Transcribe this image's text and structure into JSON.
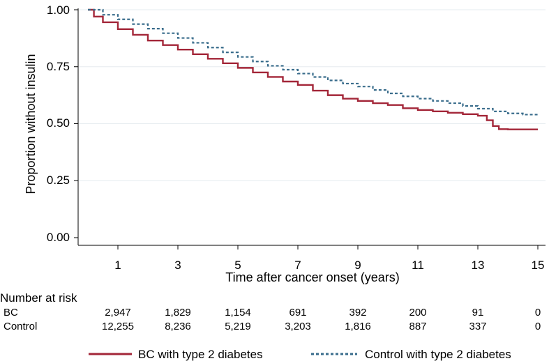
{
  "chart_data": {
    "type": "line",
    "title": "",
    "xlabel": "Time after cancer onset (years)",
    "ylabel": "Proportion without insulin",
    "xlim": [
      0,
      15
    ],
    "ylim": [
      0,
      1
    ],
    "x_ticks": [
      "1",
      "3",
      "5",
      "7",
      "9",
      "11",
      "13",
      "15"
    ],
    "y_ticks": [
      "0.00",
      "0.25",
      "0.50",
      "0.75",
      "1.00"
    ],
    "grid": true,
    "series": [
      {
        "name": "BC with type 2 diabetes",
        "color": "#a32638",
        "style": "solid",
        "x": [
          0,
          0.2,
          0.5,
          1,
          1.5,
          2,
          2.5,
          3,
          3.5,
          4,
          4.5,
          5,
          5.5,
          6,
          6.5,
          7,
          7.5,
          8,
          8.5,
          9,
          9.5,
          10,
          10.5,
          11,
          11.5,
          12,
          12.5,
          13,
          13.3,
          13.5,
          13.7,
          14,
          14.5,
          15
        ],
        "values": [
          1.0,
          0.97,
          0.945,
          0.915,
          0.89,
          0.865,
          0.845,
          0.825,
          0.805,
          0.785,
          0.765,
          0.745,
          0.725,
          0.705,
          0.685,
          0.67,
          0.645,
          0.625,
          0.61,
          0.6,
          0.59,
          0.582,
          0.568,
          0.56,
          0.554,
          0.548,
          0.542,
          0.535,
          0.515,
          0.49,
          0.476,
          0.475,
          0.475,
          0.475
        ]
      },
      {
        "name": "Control with type 2 diabetes",
        "color": "#3a6d8c",
        "style": "dashed",
        "x": [
          0,
          0.5,
          1,
          1.5,
          2,
          2.5,
          3,
          3.5,
          4,
          4.5,
          5,
          5.5,
          6,
          6.5,
          7,
          7.5,
          8,
          8.5,
          9,
          9.5,
          10,
          10.5,
          11,
          11.5,
          12,
          12.5,
          13,
          13.5,
          14,
          14.5,
          15
        ],
        "values": [
          1.0,
          0.978,
          0.958,
          0.937,
          0.917,
          0.897,
          0.876,
          0.855,
          0.834,
          0.813,
          0.793,
          0.773,
          0.754,
          0.737,
          0.72,
          0.705,
          0.69,
          0.676,
          0.663,
          0.648,
          0.633,
          0.62,
          0.61,
          0.6,
          0.59,
          0.578,
          0.566,
          0.554,
          0.545,
          0.54,
          0.535
        ]
      }
    ],
    "legend_position": "bottom"
  },
  "risk_table": {
    "title": "Number at risk",
    "rows": [
      {
        "label": "BC",
        "values": [
          "2,947",
          "1,829",
          "1,154",
          "691",
          "392",
          "200",
          "91",
          "0"
        ]
      },
      {
        "label": "Control",
        "values": [
          "12,255",
          "8,236",
          "5,219",
          "3,203",
          "1,816",
          "887",
          "337",
          "0"
        ]
      }
    ]
  }
}
